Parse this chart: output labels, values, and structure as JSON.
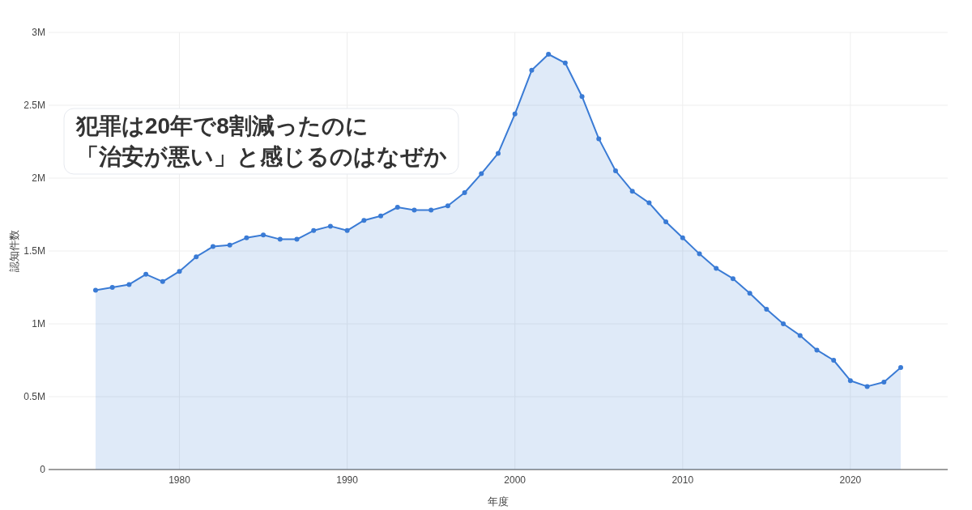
{
  "chart_data": {
    "type": "area",
    "title": "犯罪は20年で8割減ったのに",
    "subtitle": "「治安が悪い」と感じるのはなぜか",
    "xlabel": "年度",
    "ylabel": "認知件数",
    "x": [
      1975,
      1976,
      1977,
      1978,
      1979,
      1980,
      1981,
      1982,
      1983,
      1984,
      1985,
      1986,
      1987,
      1988,
      1989,
      1990,
      1991,
      1992,
      1993,
      1994,
      1995,
      1996,
      1997,
      1998,
      1999,
      2000,
      2001,
      2002,
      2003,
      2004,
      2005,
      2006,
      2007,
      2008,
      2009,
      2010,
      2011,
      2012,
      2013,
      2014,
      2015,
      2016,
      2017,
      2018,
      2019,
      2020,
      2021,
      2022,
      2023
    ],
    "values": [
      1230000,
      1250000,
      1270000,
      1340000,
      1290000,
      1360000,
      1460000,
      1530000,
      1540000,
      1590000,
      1610000,
      1580000,
      1580000,
      1640000,
      1670000,
      1640000,
      1710000,
      1740000,
      1800000,
      1780000,
      1780000,
      1810000,
      1900000,
      2030000,
      2170000,
      2440000,
      2740000,
      2850000,
      2790000,
      2560000,
      2270000,
      2050000,
      1910000,
      1830000,
      1700000,
      1590000,
      1480000,
      1380000,
      1310000,
      1210000,
      1100000,
      1000000,
      920000,
      820000,
      750000,
      610000,
      570000,
      600000,
      700000
    ],
    "color": "#3a7bd5",
    "marker": "circle",
    "line_style": "solid",
    "grid": true,
    "xlim": [
      1972.2,
      2025.8
    ],
    "xticks": [
      1980,
      1990,
      2000,
      2010,
      2020
    ],
    "ylim": [
      0,
      3000000
    ],
    "yticks": [
      0,
      {
        "value": 500000,
        "label": "0.5M"
      },
      {
        "value": 1000000,
        "label": "1M"
      },
      {
        "value": 1500000,
        "label": "1.5M"
      },
      {
        "value": 2000000,
        "label": "2M"
      },
      {
        "value": 2500000,
        "label": "2.5M"
      },
      {
        "value": 3000000,
        "label": "3M"
      }
    ]
  }
}
